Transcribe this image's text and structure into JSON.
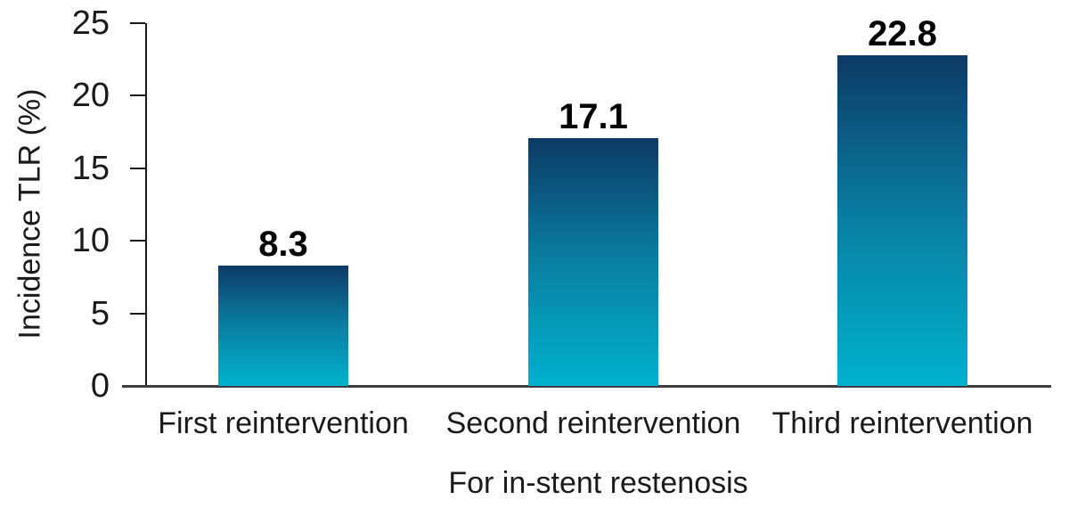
{
  "chart_data": {
    "type": "bar",
    "title": "",
    "categories": [
      "First reintervention",
      "Second reintervention",
      "Third reintervention"
    ],
    "values": [
      8.3,
      17.1,
      22.8
    ],
    "data_labels": [
      "8.3",
      "17.1",
      "22.8"
    ],
    "xlabel": "For in-stent restenosis",
    "ylabel": "Incidence TLR (%)",
    "ylim": [
      0,
      25
    ],
    "yticks": [
      0,
      5,
      10,
      15,
      20,
      25
    ],
    "grid": false,
    "legend": false,
    "layout_hints": {
      "bar_fill": "vertical gradient dark navy at top to cyan at bottom",
      "data_labels_position": "above bars, bold"
    },
    "colors": {
      "bar_gradient_top": "#0d3a66",
      "bar_gradient_mid": "#0a7fa2",
      "bar_gradient_bottom": "#00b2cd",
      "axis_line": "#1a1a1a",
      "baseline": "#3d3d3d",
      "text": "#1a1a1a",
      "data_label_text": "#000000",
      "background": "#ffffff"
    }
  }
}
